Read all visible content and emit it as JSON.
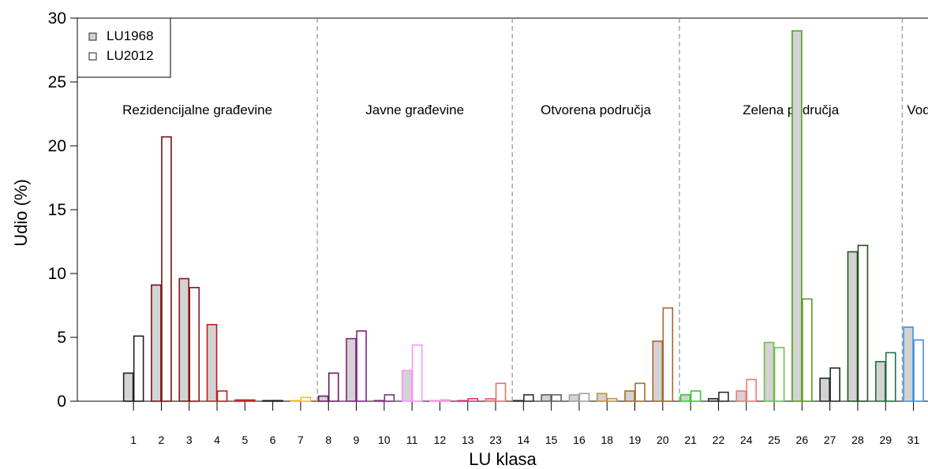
{
  "chart_data": {
    "type": "bar",
    "xlabel": "LU klasa",
    "ylabel": "Udio (%)",
    "ylim": [
      0,
      30
    ],
    "yticks": [
      "0",
      "5",
      "10",
      "15",
      "20",
      "25",
      "30"
    ],
    "categories": [
      "1",
      "2",
      "3",
      "4",
      "5",
      "6",
      "7",
      "8",
      "9",
      "10",
      "11",
      "12",
      "13",
      "23",
      "14",
      "15",
      "16",
      "18",
      "19",
      "20",
      "21",
      "22",
      "24",
      "25",
      "26",
      "27",
      "28",
      "29",
      "31"
    ],
    "colors": [
      "#1f1f1f",
      "#7a1010",
      "#8b1414",
      "#c41a1a",
      "#d02020",
      "#202020",
      "#f0c020",
      "#6a1a6a",
      "#8a1a8a",
      "#7a307a",
      "#ff90ff",
      "#ff90e0",
      "#e0307a",
      "#e07070",
      "#303030",
      "#606060",
      "#a0a0a0",
      "#c09040",
      "#a07020",
      "#b06030",
      "#30d030",
      "#303020",
      "#ff7070",
      "#70c040",
      "#50a020",
      "#203020",
      "#205020",
      "#207040",
      "#4090e0"
    ],
    "series": [
      {
        "name": "LU1968",
        "fill": "#d3d3d3",
        "values": [
          2.2,
          9.1,
          9.6,
          6.0,
          0.1,
          0.0,
          0.0,
          0.4,
          4.9,
          0.0,
          2.4,
          0.0,
          0.0,
          0.2,
          0.0,
          0.5,
          0.5,
          0.6,
          0.8,
          4.7,
          0.5,
          0.2,
          0.8,
          4.6,
          29.0,
          1.8,
          11.7,
          3.1,
          5.8
        ]
      },
      {
        "name": "LU2012",
        "fill": "#ffffff",
        "values": [
          5.1,
          20.7,
          8.9,
          0.8,
          0.1,
          0.0,
          0.3,
          2.2,
          5.5,
          0.5,
          4.4,
          0.1,
          0.2,
          1.4,
          0.5,
          0.5,
          0.6,
          0.2,
          1.4,
          7.3,
          0.8,
          0.7,
          1.7,
          4.2,
          8.0,
          2.6,
          12.2,
          3.8,
          4.8
        ]
      }
    ],
    "groups": [
      {
        "label": "Rezidencijalne građevine",
        "categories": [
          "1",
          "2",
          "3",
          "4",
          "5",
          "6",
          "7"
        ]
      },
      {
        "label": "Javne građevine",
        "categories": [
          "8",
          "9",
          "10",
          "11",
          "12",
          "13",
          "23"
        ]
      },
      {
        "label": "Otvorena područja",
        "categories": [
          "14",
          "15",
          "16",
          "18",
          "19",
          "20"
        ]
      },
      {
        "label": "Zelena  područja",
        "categories": [
          "21",
          "22",
          "24",
          "25",
          "26",
          "27",
          "28",
          "29"
        ]
      },
      {
        "label": "Vode",
        "categories": [
          "31"
        ]
      }
    ],
    "legend": {
      "position": "top-left",
      "items": [
        "LU1968",
        "LU2012"
      ]
    },
    "grid": false
  }
}
